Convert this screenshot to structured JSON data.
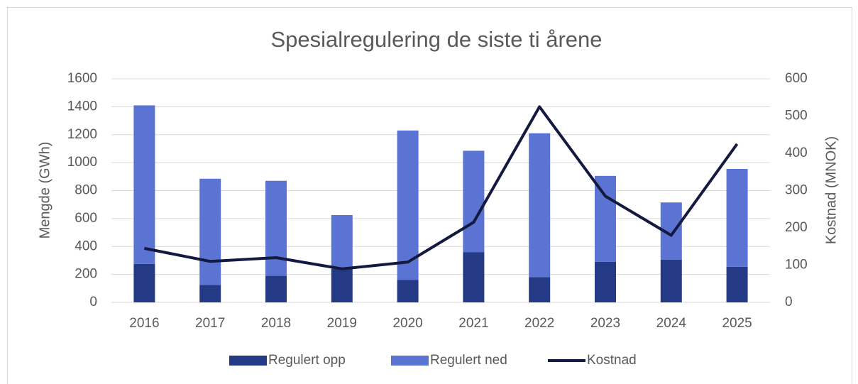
{
  "chart_data": {
    "type": "bar",
    "stacked": true,
    "title": "Spesialregulering de siste ti årene",
    "y_label": "Mengde (GWh)",
    "y2_label": "Kostnad (MNOK)",
    "categories": [
      "2016",
      "2017",
      "2018",
      "2019",
      "2020",
      "2021",
      "2022",
      "2023",
      "2024",
      "2025"
    ],
    "series": [
      {
        "name": "Regulert opp",
        "type": "bar",
        "color": "#253a84",
        "values": [
          275,
          125,
          190,
          240,
          160,
          360,
          180,
          290,
          305,
          255
        ]
      },
      {
        "name": "Regulert ned",
        "type": "bar",
        "color": "#5b73d2",
        "values": [
          1135,
          760,
          680,
          385,
          1070,
          725,
          1030,
          615,
          410,
          700
        ]
      },
      {
        "name": "Kostnad",
        "type": "line",
        "axis": "y2",
        "color": "#14193f",
        "values": [
          145,
          110,
          120,
          90,
          108,
          215,
          525,
          285,
          180,
          425
        ]
      }
    ],
    "ylim": [
      0,
      1600
    ],
    "yticks": [
      0,
      200,
      400,
      600,
      800,
      1000,
      1200,
      1400,
      1600
    ],
    "y2lim": [
      0,
      600
    ],
    "y2ticks": [
      0,
      100,
      200,
      300,
      400,
      500,
      600
    ],
    "grid": true,
    "legend": "bottom"
  }
}
